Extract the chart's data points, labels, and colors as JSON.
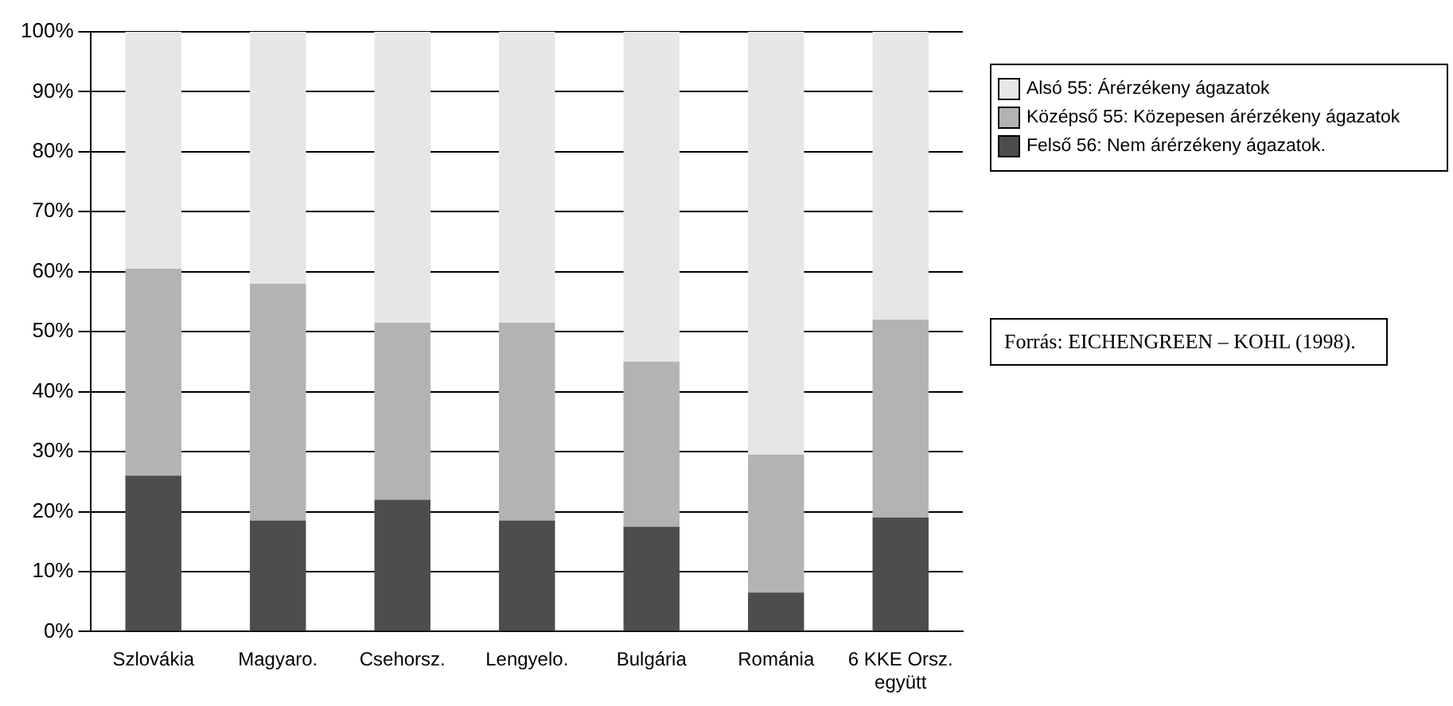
{
  "chart_data": {
    "type": "bar",
    "stacked": true,
    "categories": [
      "Szlovákia",
      "Magyaro.",
      "Csehorsz.",
      "Lengyelo.",
      "Bulgária",
      "Románia",
      "6 KKE Orsz. együtt"
    ],
    "series": [
      {
        "name": "Felső 56: Nem árérzékeny ágazatok.",
        "color": "#4d4d4d",
        "values": [
          26,
          18.5,
          22,
          18.5,
          17.5,
          6.5,
          19
        ]
      },
      {
        "name": "Középső 55: Közepesen árérzékeny ágazatok",
        "color": "#b3b3b3",
        "values": [
          34.5,
          39.5,
          29.5,
          33,
          27.5,
          23,
          33
        ]
      },
      {
        "name": "Alsó 55:  Árérzékeny ágazatok",
        "color": "#e6e6e6",
        "values": [
          39.5,
          42,
          48.5,
          48.5,
          55,
          70.5,
          48
        ]
      }
    ],
    "ylim": [
      0,
      100
    ],
    "yticks": [
      {
        "value": 0,
        "label": "0%"
      },
      {
        "value": 10,
        "label": "10%"
      },
      {
        "value": 20,
        "label": "20%"
      },
      {
        "value": 30,
        "label": "30%"
      },
      {
        "value": 40,
        "label": "40%"
      },
      {
        "value": 50,
        "label": "50%"
      },
      {
        "value": 60,
        "label": "60%"
      },
      {
        "value": 70,
        "label": "70%"
      },
      {
        "value": 80,
        "label": "80%"
      },
      {
        "value": 90,
        "label": "90%"
      },
      {
        "value": 100,
        "label": "100%"
      }
    ],
    "grid": "y",
    "legend": "right",
    "annotations": [
      "Forrás: EICHENGREEN – KOHL (1998)."
    ]
  }
}
